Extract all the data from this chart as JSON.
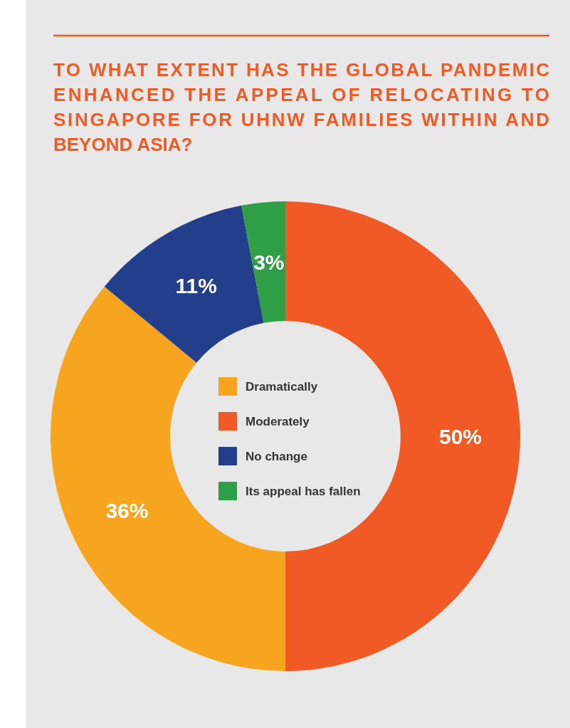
{
  "chart_data": {
    "type": "donut",
    "title": "TO WHAT EXTENT HAS THE GLOBAL PANDEMIC ENHANCED THE APPEAL OF RELOCATING TO SINGAPORE FOR UHNW FAMILIES WITHIN AND BEYOND ASIA?",
    "categories": [
      "Moderately",
      "Dramatically",
      "No change",
      "Its appeal has fallen"
    ],
    "values": [
      50,
      36,
      11,
      3
    ],
    "value_labels": [
      "50%",
      "36%",
      "11%",
      "3%"
    ],
    "colors": [
      "#f15a24",
      "#f7a51e",
      "#233f8b",
      "#2f9f47"
    ],
    "legend": "center"
  }
}
